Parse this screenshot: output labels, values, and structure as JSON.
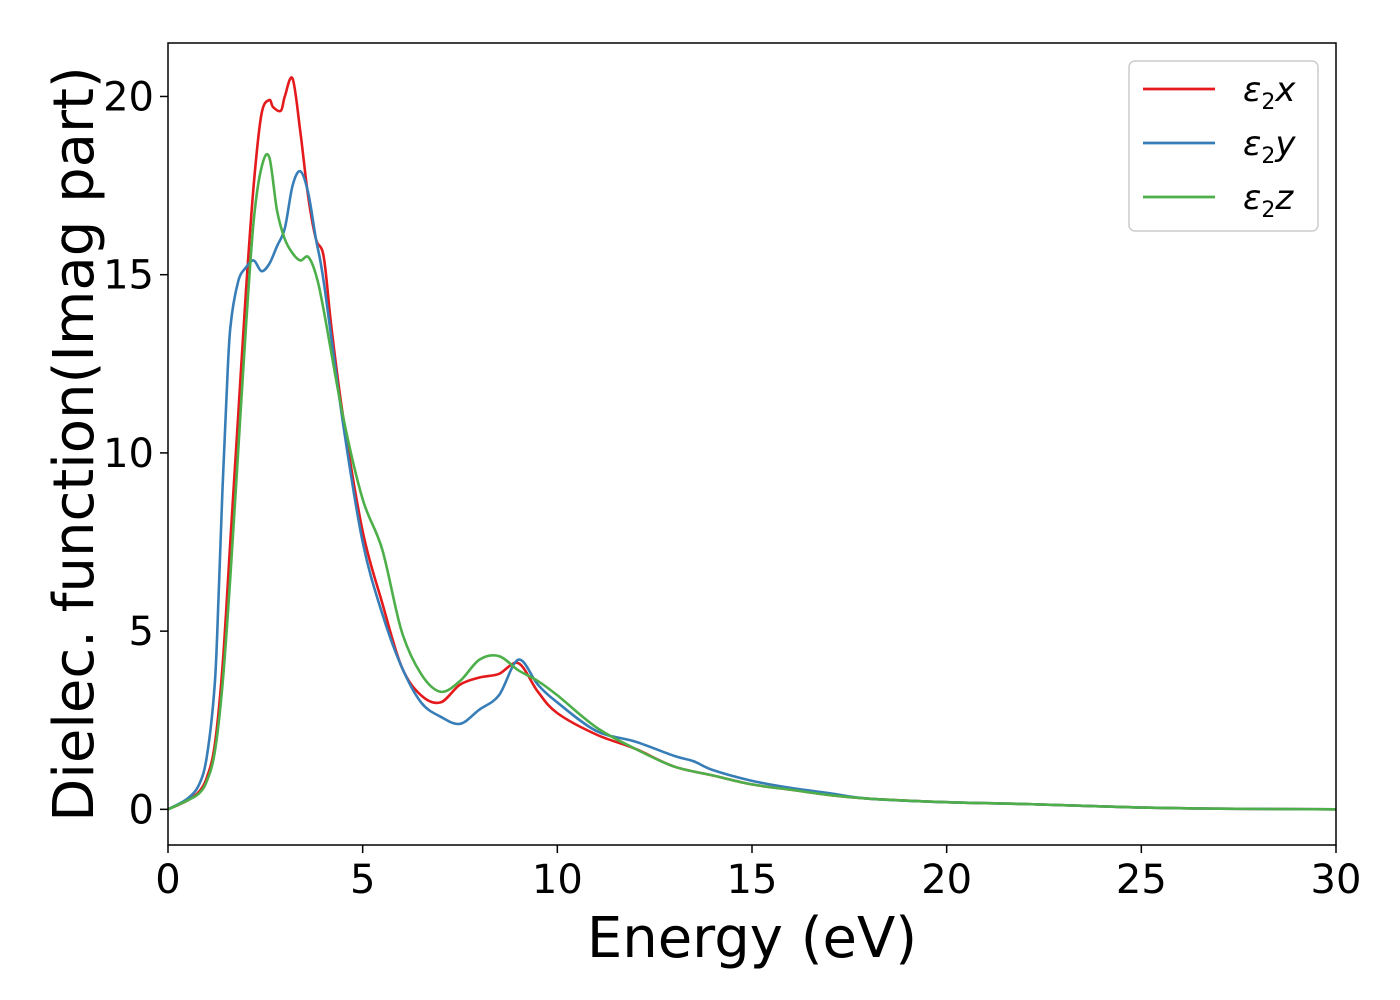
{
  "chart_data": {
    "type": "line",
    "xlabel": "Energy (eV)",
    "ylabel": "Dielec. function(Imag part)",
    "xlim": [
      0,
      30
    ],
    "ylim": [
      -1,
      21.5
    ],
    "xticks": [
      0,
      5,
      10,
      15,
      20,
      25,
      30
    ],
    "yticks": [
      0,
      5,
      10,
      15,
      20
    ],
    "grid": false,
    "legend_position": "top-right",
    "series": [
      {
        "name": "ε2x",
        "legend_main": "ε",
        "legend_sub": "2",
        "legend_tail": "x",
        "color": "#e41a1c",
        "x": [
          0,
          0.5,
          0.8,
          1.0,
          1.2,
          1.4,
          1.6,
          1.8,
          2.0,
          2.2,
          2.4,
          2.6,
          2.7,
          2.9,
          3.0,
          3.2,
          3.4,
          3.6,
          3.8,
          4.0,
          4.2,
          4.5,
          5.0,
          5.5,
          6.0,
          6.5,
          7.0,
          7.5,
          8.0,
          8.5,
          9.0,
          9.5,
          10.0,
          11.0,
          12.0,
          13.0,
          14.0,
          15.0,
          16.0,
          17.0,
          18.0,
          20.0,
          22.0,
          25.0,
          27.0,
          30.0
        ],
        "y": [
          0,
          0.25,
          0.5,
          0.9,
          1.8,
          4.0,
          7.5,
          11.0,
          14.5,
          17.5,
          19.5,
          19.9,
          19.7,
          19.6,
          20.0,
          20.5,
          19.0,
          17.2,
          16.0,
          15.5,
          13.5,
          11.0,
          7.8,
          5.8,
          4.0,
          3.2,
          3.0,
          3.5,
          3.7,
          3.8,
          4.1,
          3.3,
          2.7,
          2.1,
          1.7,
          1.2,
          0.95,
          0.7,
          0.55,
          0.4,
          0.3,
          0.2,
          0.15,
          0.05,
          0.02,
          0.0
        ]
      },
      {
        "name": "ε2y",
        "legend_main": "ε",
        "legend_sub": "2",
        "legend_tail": "y",
        "color": "#377eb8",
        "x": [
          0,
          0.5,
          0.8,
          1.0,
          1.2,
          1.3,
          1.4,
          1.5,
          1.6,
          1.8,
          2.0,
          2.2,
          2.4,
          2.6,
          2.8,
          3.0,
          3.2,
          3.4,
          3.6,
          3.8,
          4.0,
          4.5,
          5.0,
          5.5,
          6.0,
          6.5,
          7.0,
          7.5,
          8.0,
          8.5,
          9.0,
          9.5,
          10.0,
          11.0,
          12.0,
          13.0,
          13.5,
          14.0,
          15.0,
          16.0,
          17.0,
          18.0,
          20.0,
          22.0,
          25.0,
          27.0,
          30.0
        ],
        "y": [
          0,
          0.3,
          0.7,
          1.5,
          3.5,
          6.0,
          9.0,
          11.5,
          13.5,
          14.8,
          15.2,
          15.4,
          15.1,
          15.3,
          15.8,
          16.3,
          17.5,
          17.9,
          17.3,
          16.0,
          14.8,
          10.8,
          7.5,
          5.5,
          4.0,
          3.0,
          2.6,
          2.4,
          2.8,
          3.2,
          4.2,
          3.5,
          3.0,
          2.2,
          1.9,
          1.5,
          1.35,
          1.1,
          0.8,
          0.6,
          0.45,
          0.3,
          0.2,
          0.15,
          0.05,
          0.02,
          0.0
        ]
      },
      {
        "name": "ε2z",
        "legend_main": "ε",
        "legend_sub": "2",
        "legend_tail": "z",
        "color": "#4daf4a",
        "x": [
          0,
          0.5,
          0.8,
          1.0,
          1.2,
          1.4,
          1.6,
          1.8,
          2.0,
          2.2,
          2.4,
          2.6,
          2.8,
          3.0,
          3.2,
          3.4,
          3.6,
          3.8,
          4.0,
          4.5,
          5.0,
          5.5,
          6.0,
          6.5,
          7.0,
          7.5,
          8.0,
          8.5,
          9.0,
          9.5,
          10.0,
          11.0,
          12.0,
          13.0,
          14.0,
          15.0,
          16.0,
          17.0,
          18.0,
          20.0,
          22.0,
          25.0,
          27.0,
          30.0
        ],
        "y": [
          0,
          0.25,
          0.45,
          0.8,
          1.6,
          3.5,
          6.5,
          10.0,
          13.5,
          16.5,
          18.0,
          18.3,
          16.8,
          16.0,
          15.6,
          15.4,
          15.5,
          15.0,
          14.0,
          11.0,
          8.7,
          7.3,
          5.0,
          3.8,
          3.3,
          3.6,
          4.2,
          4.3,
          3.9,
          3.6,
          3.2,
          2.3,
          1.7,
          1.2,
          0.95,
          0.7,
          0.55,
          0.4,
          0.3,
          0.2,
          0.15,
          0.05,
          0.02,
          0.0
        ]
      }
    ]
  }
}
